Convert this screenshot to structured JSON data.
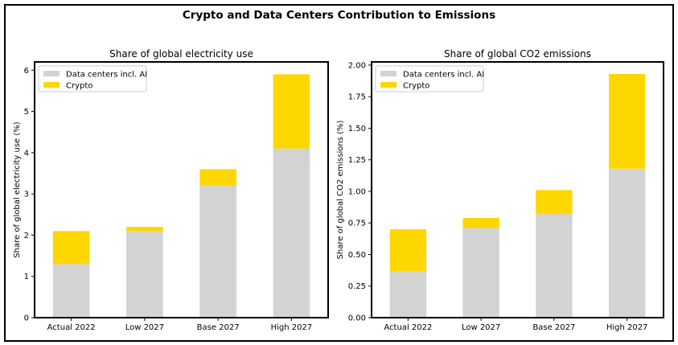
{
  "suptitle": "Crypto and Data Centers Contribution to Emissions",
  "colors": {
    "data_centers": "#d3d3d3",
    "crypto": "#ffd700"
  },
  "chart_data": [
    {
      "type": "bar",
      "stacked": true,
      "title": "Share of global electricity use",
      "xlabel": "",
      "ylabel": "Share of global electricity use (%)",
      "categories": [
        "Actual 2022",
        "Low 2027",
        "Base 2027",
        "High 2027"
      ],
      "series": [
        {
          "name": "Data centers incl. AI",
          "color": "#d3d3d3",
          "values": [
            1.3,
            2.1,
            3.2,
            4.1
          ]
        },
        {
          "name": "Crypto",
          "color": "#ffd700",
          "values": [
            0.8,
            0.1,
            0.4,
            1.8
          ]
        }
      ],
      "ylim": [
        0,
        6.2
      ],
      "yticks": [
        0,
        1,
        2,
        3,
        4,
        5,
        6
      ],
      "ytick_labels": [
        "0",
        "1",
        "2",
        "3",
        "4",
        "5",
        "6"
      ],
      "grid": false,
      "legend": "top-left"
    },
    {
      "type": "bar",
      "stacked": true,
      "title": "Share of global CO2 emissions",
      "xlabel": "",
      "ylabel": "Share of global CO2 emissions (%)",
      "categories": [
        "Actual 2022",
        "Low 2027",
        "Base 2027",
        "High 2027"
      ],
      "series": [
        {
          "name": "Data centers incl. AI",
          "color": "#d3d3d3",
          "values": [
            0.37,
            0.71,
            0.82,
            1.18
          ]
        },
        {
          "name": "Crypto",
          "color": "#ffd700",
          "values": [
            0.33,
            0.08,
            0.19,
            0.75
          ]
        }
      ],
      "ylim": [
        0,
        2.025
      ],
      "yticks": [
        0,
        0.25,
        0.5,
        0.75,
        1.0,
        1.25,
        1.5,
        1.75,
        2.0
      ],
      "ytick_labels": [
        "0.00",
        "0.25",
        "0.50",
        "0.75",
        "1.00",
        "1.25",
        "1.50",
        "1.75",
        "2.00"
      ],
      "grid": false,
      "legend": "top-left"
    }
  ]
}
